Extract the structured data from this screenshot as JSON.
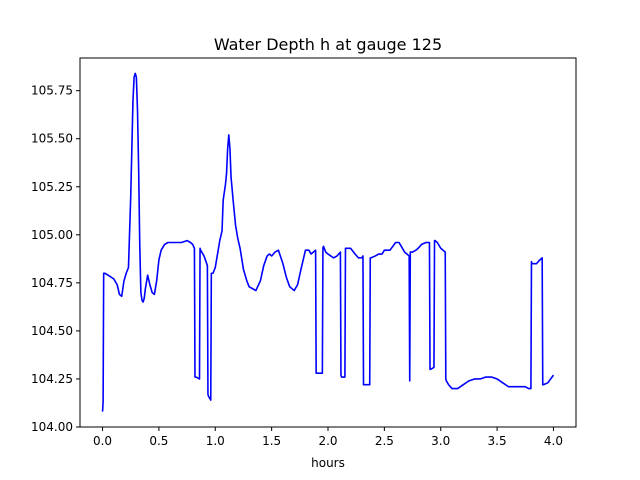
{
  "chart_data": {
    "type": "line",
    "title": "Water Depth h at gauge 125",
    "xlabel": "hours",
    "ylabel": "",
    "xlim": [
      -0.2,
      4.2
    ],
    "ylim": [
      104.0,
      105.92
    ],
    "xticks": [
      0.0,
      0.5,
      1.0,
      1.5,
      2.0,
      2.5,
      3.0,
      3.5,
      4.0
    ],
    "xtick_labels": [
      "0.0",
      "0.5",
      "1.0",
      "1.5",
      "2.0",
      "2.5",
      "3.0",
      "3.5",
      "4.0"
    ],
    "yticks": [
      104.0,
      104.25,
      104.5,
      104.75,
      105.0,
      105.25,
      105.5,
      105.75
    ],
    "ytick_labels": [
      "104.00",
      "104.25",
      "104.50",
      "104.75",
      "105.00",
      "105.25",
      "105.50",
      "105.75"
    ],
    "grid": false,
    "series": [
      {
        "name": "",
        "color": "#0000ff",
        "x": [
          0.0,
          0.005,
          0.01,
          0.02,
          0.05,
          0.1,
          0.13,
          0.15,
          0.17,
          0.19,
          0.21,
          0.23,
          0.25,
          0.26,
          0.27,
          0.28,
          0.29,
          0.3,
          0.31,
          0.32,
          0.33,
          0.34,
          0.35,
          0.36,
          0.37,
          0.38,
          0.4,
          0.42,
          0.44,
          0.46,
          0.48,
          0.5,
          0.52,
          0.55,
          0.58,
          0.6,
          0.65,
          0.7,
          0.75,
          0.78,
          0.8,
          0.815,
          0.82,
          0.83,
          0.86,
          0.865,
          0.87,
          0.9,
          0.93,
          0.935,
          0.94,
          0.96,
          0.965,
          0.97,
          0.98,
          1.0,
          1.02,
          1.04,
          1.06,
          1.07,
          1.08,
          1.09,
          1.1,
          1.11,
          1.12,
          1.13,
          1.14,
          1.16,
          1.18,
          1.2,
          1.22,
          1.25,
          1.28,
          1.3,
          1.33,
          1.36,
          1.4,
          1.43,
          1.46,
          1.48,
          1.5,
          1.53,
          1.56,
          1.6,
          1.63,
          1.66,
          1.7,
          1.73,
          1.76,
          1.8,
          1.83,
          1.85,
          1.87,
          1.89,
          1.895,
          1.9,
          1.95,
          1.955,
          1.96,
          1.98,
          2.0,
          2.05,
          2.08,
          2.11,
          2.115,
          2.12,
          2.15,
          2.155,
          2.16,
          2.2,
          2.24,
          2.27,
          2.3,
          2.31,
          2.315,
          2.32,
          2.37,
          2.375,
          2.38,
          2.42,
          2.45,
          2.48,
          2.5,
          2.55,
          2.6,
          2.63,
          2.65,
          2.68,
          2.7,
          2.72,
          2.725,
          2.73,
          2.75,
          2.78,
          2.8,
          2.83,
          2.87,
          2.9,
          2.905,
          2.91,
          2.94,
          2.945,
          2.95,
          2.97,
          3.0,
          3.04,
          3.045,
          3.05,
          3.07,
          3.1,
          3.15,
          3.2,
          3.25,
          3.3,
          3.35,
          3.4,
          3.45,
          3.5,
          3.55,
          3.6,
          3.65,
          3.7,
          3.75,
          3.78,
          3.8,
          3.805,
          3.81,
          3.85,
          3.88,
          3.9,
          3.905,
          3.91,
          3.95,
          4.0
        ],
        "y": [
          104.08,
          104.13,
          104.8,
          104.8,
          104.79,
          104.77,
          104.74,
          104.69,
          104.68,
          104.76,
          104.8,
          104.83,
          105.2,
          105.45,
          105.7,
          105.82,
          105.84,
          105.82,
          105.65,
          105.35,
          104.95,
          104.7,
          104.66,
          104.65,
          104.67,
          104.72,
          104.79,
          104.74,
          104.7,
          104.69,
          104.76,
          104.87,
          104.92,
          104.95,
          104.96,
          104.96,
          104.96,
          104.96,
          104.97,
          104.96,
          104.95,
          104.93,
          104.26,
          104.26,
          104.25,
          104.93,
          104.92,
          104.89,
          104.84,
          104.17,
          104.16,
          104.14,
          104.8,
          104.8,
          104.8,
          104.83,
          104.9,
          104.97,
          105.02,
          105.18,
          105.22,
          105.26,
          105.32,
          105.45,
          105.52,
          105.45,
          105.3,
          105.17,
          105.05,
          104.98,
          104.93,
          104.82,
          104.76,
          104.73,
          104.72,
          104.71,
          104.76,
          104.84,
          104.89,
          104.9,
          104.89,
          104.91,
          104.92,
          104.85,
          104.78,
          104.73,
          104.71,
          104.74,
          104.82,
          104.92,
          104.92,
          104.9,
          104.91,
          104.92,
          104.28,
          104.28,
          104.28,
          104.93,
          104.94,
          104.91,
          104.9,
          104.88,
          104.89,
          104.91,
          104.27,
          104.26,
          104.26,
          104.93,
          104.93,
          104.93,
          104.9,
          104.88,
          104.88,
          104.89,
          104.22,
          104.22,
          104.22,
          104.88,
          104.88,
          104.89,
          104.9,
          104.9,
          104.92,
          104.92,
          104.96,
          104.96,
          104.94,
          104.91,
          104.9,
          104.89,
          104.24,
          104.91,
          104.91,
          104.92,
          104.93,
          104.95,
          104.96,
          104.96,
          104.3,
          104.3,
          104.31,
          104.97,
          104.97,
          104.96,
          104.93,
          104.91,
          104.25,
          104.24,
          104.22,
          104.2,
          104.2,
          104.22,
          104.24,
          104.25,
          104.25,
          104.26,
          104.26,
          104.25,
          104.23,
          104.21,
          104.21,
          104.21,
          104.21,
          104.2,
          104.2,
          104.86,
          104.85,
          104.85,
          104.87,
          104.88,
          104.22,
          104.22,
          104.23,
          104.27
        ]
      }
    ]
  }
}
